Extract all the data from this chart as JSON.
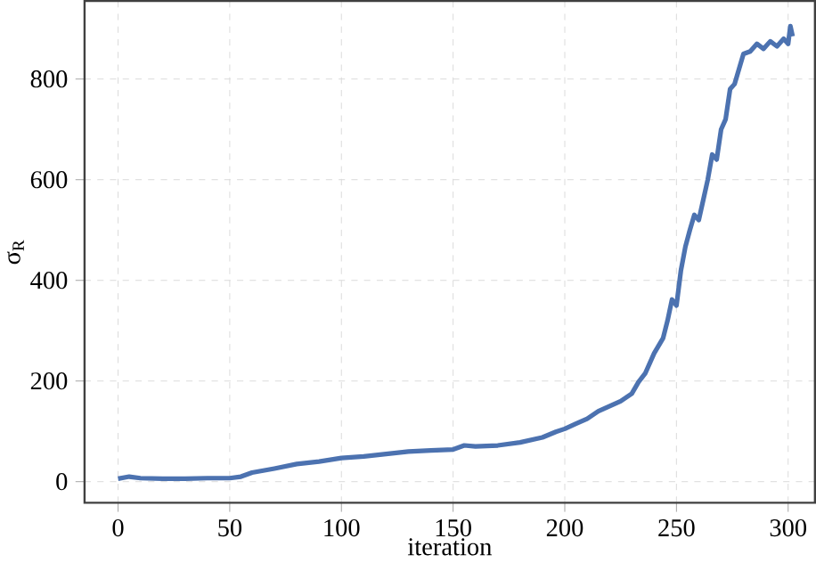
{
  "chart_data": {
    "type": "line",
    "xlabel": "iteration",
    "ylabel": "σ$_{R}$",
    "xlim": [
      -15,
      312
    ],
    "ylim": [
      -42,
      955
    ],
    "xticks": [
      0,
      50,
      100,
      150,
      200,
      250,
      300
    ],
    "yticks": [
      0,
      200,
      400,
      600,
      800
    ],
    "grid": true,
    "marker": "none",
    "line_style": "solid",
    "series": [
      {
        "color": "#4c72b0",
        "x": [
          0,
          5,
          10,
          20,
          30,
          40,
          50,
          55,
          60,
          70,
          80,
          90,
          100,
          110,
          120,
          130,
          140,
          150,
          155,
          160,
          170,
          180,
          190,
          196,
          200,
          205,
          210,
          215,
          220,
          225,
          230,
          233,
          236,
          240,
          244,
          246,
          248,
          250,
          252,
          254,
          256,
          258,
          260,
          262,
          264,
          266,
          268,
          270,
          272,
          274,
          276,
          278,
          280,
          283,
          286,
          289,
          292,
          295,
          298,
          300,
          301,
          302
        ],
        "values": [
          6,
          10,
          7,
          6,
          6,
          7,
          7,
          10,
          18,
          26,
          35,
          40,
          47,
          50,
          55,
          60,
          62,
          64,
          72,
          70,
          72,
          78,
          88,
          99,
          105,
          115,
          125,
          140,
          150,
          160,
          175,
          198,
          215,
          255,
          285,
          320,
          362,
          350,
          420,
          467,
          500,
          530,
          520,
          560,
          600,
          650,
          640,
          700,
          720,
          780,
          790,
          820,
          850,
          855,
          870,
          860,
          875,
          865,
          880,
          870,
          905,
          885
        ]
      }
    ]
  }
}
